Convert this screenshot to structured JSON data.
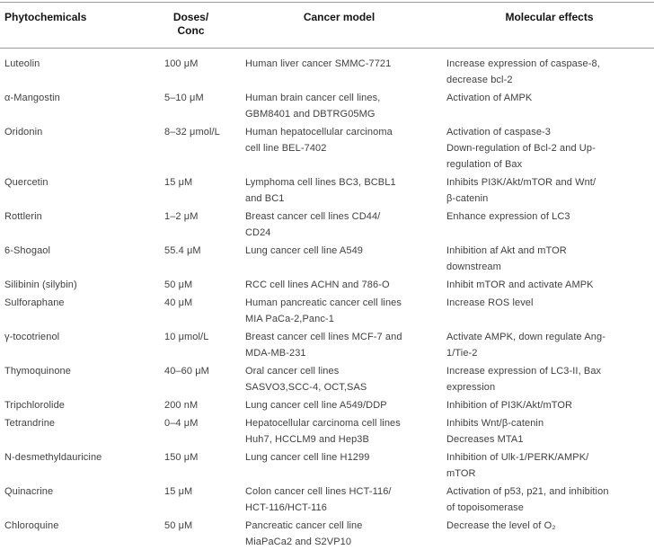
{
  "table": {
    "headers": [
      "Phytochemicals",
      "Doses/\nConc",
      "Cancer model",
      "Molecular effects"
    ],
    "rows": [
      {
        "phytochemical": "Luteolin",
        "dose": "100 μM",
        "cancer_model": "Human liver cancer SMMC-7721",
        "molecular_effects": "Increase expression of caspase-8,\ndecrease bcl-2"
      },
      {
        "phytochemical": "α-Mangostin",
        "dose": "5–10 μM",
        "cancer_model": "Human brain cancer cell lines,\nGBM8401 and DBTRG05MG",
        "molecular_effects": "Activation of AMPK"
      },
      {
        "phytochemical": "Oridonin",
        "dose": "8–32 μmol/L",
        "cancer_model": "Human hepatocellular carcinoma\ncell line BEL-7402",
        "molecular_effects": "Activation of caspase-3\nDown-regulation of Bcl-2 and Up-\nregulation of Bax"
      },
      {
        "phytochemical": "Quercetin",
        "dose": "15 μM",
        "cancer_model": "Lymphoma cell lines BC3, BCBL1\nand BC1",
        "molecular_effects": "Inhibits PI3K/Akt/mTOR and Wnt/\nβ-catenin"
      },
      {
        "phytochemical": "Rottlerin",
        "dose": "1–2 μM",
        "cancer_model": "Breast cancer cell lines CD44/\nCD24",
        "molecular_effects": "Enhance expression of LC3"
      },
      {
        "phytochemical": "6-Shogaol",
        "dose": "55.4 μM",
        "cancer_model": "Lung cancer cell line A549",
        "molecular_effects": "Inhibition af Akt and mTOR\ndownstream"
      },
      {
        "phytochemical": "Silibinin (silybin)",
        "dose": "50 μM",
        "cancer_model": "RCC cell lines ACHN and 786-O",
        "molecular_effects": "Inhibit mTOR and activate AMPK"
      },
      {
        "phytochemical": "Sulforaphane",
        "dose": "40 μM",
        "cancer_model": "Human pancreatic cancer cell lines\nMIA PaCa-2,Panc-1",
        "molecular_effects": "Increase ROS level"
      },
      {
        "phytochemical": "γ-tocotrienol",
        "dose": "10 μmol/L",
        "cancer_model": "Breast cancer cell lines MCF-7 and\nMDA-MB-231",
        "molecular_effects": "Activate AMPK, down regulate Ang-\n1/Tie-2"
      },
      {
        "phytochemical": "Thymoquinone",
        "dose": "40–60 μM",
        "cancer_model": "Oral cancer cell lines\nSASVO3,SCC-4, OCT,SAS",
        "molecular_effects": "Increase expression of LC3-II, Bax\nexpression"
      },
      {
        "phytochemical": "Tripchlorolide",
        "dose": "200 nM",
        "cancer_model": "Lung cancer cell line A549/DDP",
        "molecular_effects": "Inhibition of PI3K/Akt/mTOR"
      },
      {
        "phytochemical": "Tetrandrine",
        "dose": "0–4 μM",
        "cancer_model": "Hepatocellular carcinoma cell lines\nHuh7, HCCLM9 and Hep3B",
        "molecular_effects": "Inhibits Wnt/β-catenin\nDecreases MTA1"
      },
      {
        "phytochemical": "N-desmethyldauricine",
        "dose": "150 μM",
        "cancer_model": "Lung cancer cell line H1299",
        "molecular_effects": "Inhibition of Ulk-1/PERK/AMPK/\nmTOR"
      },
      {
        "phytochemical": "Quinacrine",
        "dose": "15 μM",
        "cancer_model": "Colon cancer cell lines HCT-116/\nHCT-116/HCT-116",
        "molecular_effects": "Activation of p53, p21, and inhibition\nof topoisomerase"
      },
      {
        "phytochemical": "Chloroquine",
        "dose": "50 μM",
        "cancer_model": "Pancreatic cancer cell line\nMiaPaCa2 and S2VP10",
        "molecular_effects": "Decrease the level of O₂"
      }
    ]
  },
  "colors": {
    "header_text": "#141414",
    "body_text": "#404040",
    "rule": "#9c9c9c",
    "background": "#ffffff"
  }
}
